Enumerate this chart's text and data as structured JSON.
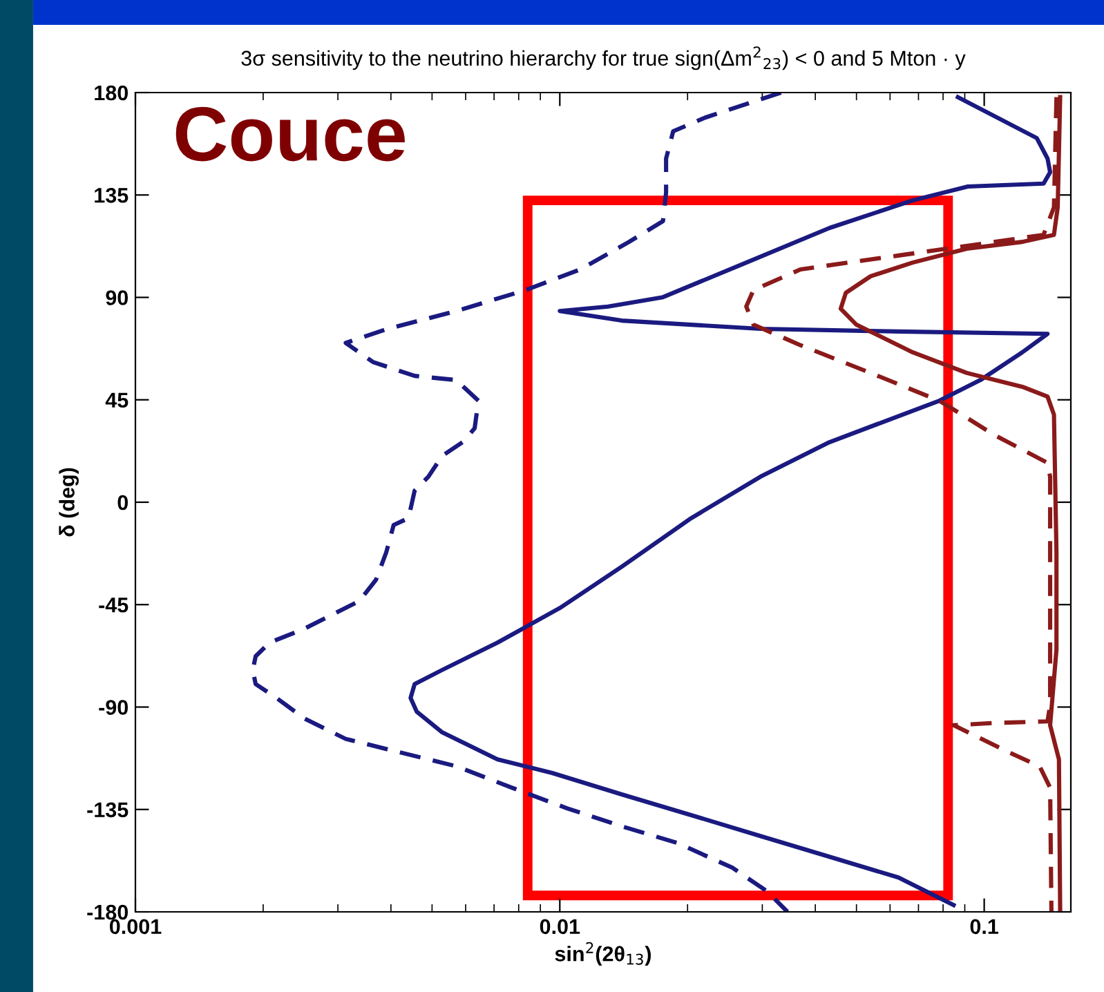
{
  "chart_data": {
    "type": "line",
    "title": "3σ sensitivity to the neutrino hierarchy for true sign(Δm$^{2}$$_{23}$) < 0 and 5 Mton · y",
    "xlabel": "sin$^{2}$(2θ$_{13}$)",
    "ylabel": "δ (deg)",
    "log": "x",
    "xlim": [
      0.001,
      0.16
    ],
    "xticks": [
      0.001,
      0.01,
      0.1
    ],
    "ylim": [
      -180,
      180
    ],
    "yticks": [
      -180,
      -135,
      -90,
      -45,
      0,
      45,
      90,
      135,
      180
    ],
    "grid": false,
    "legend": false,
    "annotations": [
      "Couce"
    ],
    "series": [
      {
        "color": "#1a1a80",
        "line_style": "dashed",
        "x": [
          0.0332,
          0.022,
          0.0185,
          0.0178,
          0.0178,
          0.0175,
          0.01456,
          0.01118,
          0.0083,
          0.0057,
          0.0039,
          0.00313,
          0.00363,
          0.00455,
          0.0057,
          0.00643,
          0.0063,
          0.0059,
          0.00528,
          0.0049,
          0.00455,
          0.0044,
          0.00406,
          0.0039,
          0.00369,
          0.00337,
          0.0029,
          0.0025,
          0.00207,
          0.00192,
          0.00189,
          0.00192,
          0.00215,
          0.0025,
          0.00313,
          0.00422,
          0.0057,
          0.0077,
          0.0104,
          0.014,
          0.0189,
          0.0255,
          0.0308,
          0.0344
        ],
        "values": [
          180,
          169,
          163,
          151,
          136,
          123.5,
          114.4,
          102.3,
          93.2,
          84,
          76,
          70,
          61.6,
          55.5,
          53.7,
          44.6,
          32.5,
          26.4,
          20.3,
          11.2,
          5.1,
          -7,
          -10,
          -22,
          -34,
          -43.4,
          -49.5,
          -55.6,
          -61.7,
          -67.7,
          -73.8,
          -79.9,
          -86,
          -95,
          -104,
          -110,
          -116,
          -125.4,
          -134.5,
          -142.4,
          -149.7,
          -160.6,
          -171,
          -180
        ]
      },
      {
        "color": "#1a1a80",
        "line_style": "solid",
        "x": [
          0.0867,
          0.133,
          0.141,
          0.143,
          0.138,
          0.0915,
          0.0678,
          0.0432,
          0.0275,
          0.0175,
          0.013,
          0.01,
          0.014,
          0.0297,
          0.0628,
          0.141,
          0.123,
          0.098,
          0.0784,
          0.0582,
          0.0432,
          0.0297,
          0.0204,
          0.014,
          0.01,
          0.00713,
          0.00527,
          0.00455,
          0.00445,
          0.0046,
          0.00527,
          0.00713,
          0.0096,
          0.014,
          0.0204,
          0.0297,
          0.0432,
          0.0628,
          0.0847
        ],
        "values": [
          178,
          160,
          151,
          145,
          140,
          138.7,
          132.6,
          120.5,
          105.3,
          90.1,
          86,
          84,
          79.8,
          76.2,
          75,
          74,
          65.9,
          53.7,
          44.6,
          35.5,
          26.4,
          11.2,
          -7,
          -28.3,
          -46.5,
          -61.7,
          -73.8,
          -79.9,
          -86,
          -92,
          -101,
          -113,
          -119,
          -128.4,
          -137.5,
          -146.7,
          -155.8,
          -164.9,
          -177
        ]
      },
      {
        "color": "#8b1a1a",
        "line_style": "solid",
        "x": [
          0.151,
          0.149,
          0.146,
          0.123,
          0.091,
          0.0678,
          0.054,
          0.0472,
          0.0459,
          0.05,
          0.0678,
          0.091,
          0.123,
          0.141,
          0.146,
          0.147,
          0.148,
          0.148,
          0.143,
          0.15,
          0.151
        ],
        "values": [
          178,
          129.6,
          117.5,
          114.4,
          111.4,
          105.3,
          99.3,
          92,
          85,
          78,
          65.9,
          56.8,
          50.7,
          46.4,
          38.5,
          8.2,
          -22,
          -64.7,
          -98,
          -113,
          -180
        ]
      },
      {
        "color": "#8b1a1a",
        "line_style": "dashed",
        "x": [
          0.148,
          0.146,
          0.138,
          0.106,
          0.0628,
          0.0369,
          0.0286,
          0.0275,
          0.0286,
          0.0369,
          0.054,
          0.0784,
          0.106,
          0.141,
          0.143,
          0.143,
          0.141,
          0.106,
          0.0847,
          0.1146,
          0.135,
          0.143,
          0.144
        ],
        "values": [
          178,
          129.6,
          117.5,
          114.4,
          108.4,
          102.3,
          93.2,
          86,
          78,
          69,
          56.8,
          44.6,
          29.4,
          17.3,
          11.2,
          -89,
          -96.3,
          -97,
          -98,
          -110,
          -116,
          -125.4,
          -180
        ]
      }
    ]
  }
}
